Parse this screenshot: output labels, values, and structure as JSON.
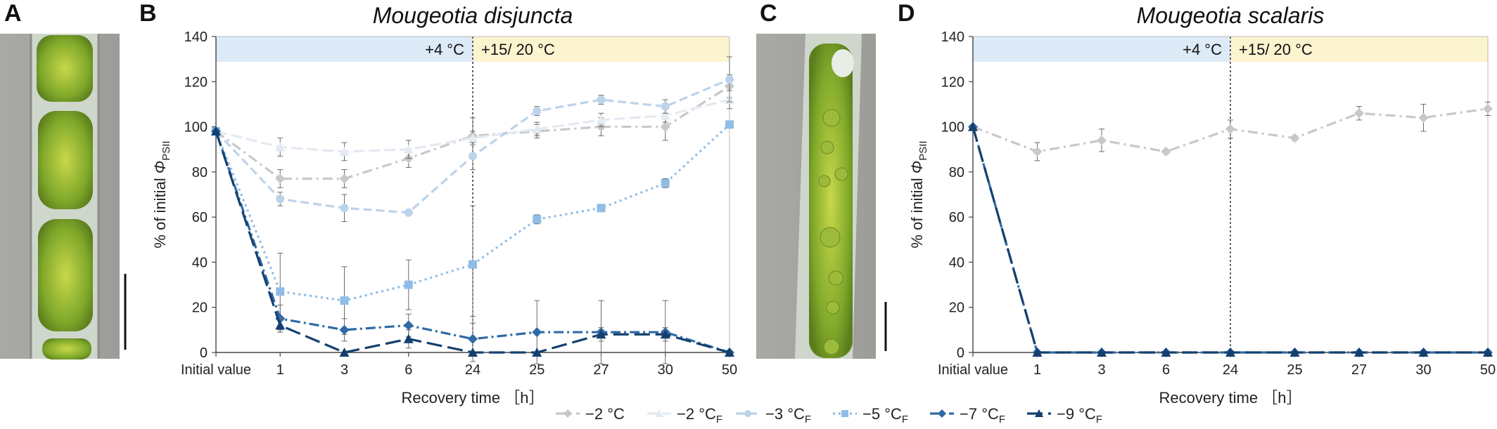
{
  "panels": {
    "A": "A",
    "B": "B",
    "C": "C",
    "D": "D"
  },
  "ylabel_main": "% of initial Φ",
  "ylabel_sub": "PSII",
  "legend": [
    {
      "label": "−2 °C",
      "sub": "",
      "color": "#c8c8c8",
      "dash": "14,6,3,6",
      "marker": "diamond"
    },
    {
      "label": "−2 °C",
      "sub": "F",
      "color": "#e3eaf1",
      "dash": "16,6",
      "marker": "triangle"
    },
    {
      "label": "−3 °C",
      "sub": "F",
      "color": "#bcd3ea",
      "dash": "12,6",
      "marker": "circle"
    },
    {
      "label": "−5 °C",
      "sub": "F",
      "color": "#90bde5",
      "dash": "3,5",
      "marker": "square"
    },
    {
      "label": "−7 °C",
      "sub": "F",
      "color": "#2f6aa6",
      "dash": "14,5,3,5",
      "marker": "diamond"
    },
    {
      "label": "−9 °C",
      "sub": "F",
      "color": "#14406e",
      "dash": "22,8",
      "marker": "triangle"
    }
  ],
  "chart_data": [
    {
      "type": "line",
      "title": "Mougeotia disjuncta",
      "xlabel": "Recovery time ［h］",
      "ylabel": "% of initial ΦPSII",
      "categories": [
        "Initial value",
        "1",
        "3",
        "6",
        "24",
        "25",
        "27",
        "30",
        "50"
      ],
      "ylim": [
        0,
        140
      ],
      "yticks": [
        0,
        20,
        40,
        60,
        80,
        100,
        120,
        140
      ],
      "phases": [
        {
          "label": "+4 °C",
          "from": 0,
          "to": 4,
          "color": "#ddeaf7"
        },
        {
          "label": "+15/ 20 °C",
          "from": 4,
          "to": 8,
          "color": "#fcf3cf"
        }
      ],
      "series": [
        {
          "name": "−2 °C",
          "values": [
            98,
            77,
            77,
            86,
            96,
            98,
            100,
            100,
            118
          ],
          "errors": [
            0,
            4,
            4,
            4,
            8,
            3,
            4,
            6,
            5
          ]
        },
        {
          "name": "−2 °CF",
          "values": [
            98,
            91,
            89,
            90,
            95,
            99,
            103,
            105,
            112
          ],
          "errors": [
            0,
            4,
            4,
            4,
            3,
            3,
            3,
            3,
            4
          ]
        },
        {
          "name": "−3 °CF",
          "values": [
            98,
            68,
            64,
            62,
            87,
            107,
            112,
            109,
            121
          ],
          "errors": [
            0,
            3,
            6,
            1,
            6,
            2,
            2,
            3,
            10
          ]
        },
        {
          "name": "−5 °CF",
          "values": [
            98,
            27,
            23,
            30,
            39,
            59,
            64,
            75,
            101
          ],
          "errors": [
            0,
            17,
            15,
            11,
            26,
            2,
            1,
            2,
            1
          ]
        },
        {
          "name": "−7 °CF",
          "values": [
            98,
            15,
            10,
            12,
            6,
            9,
            9,
            9,
            0
          ],
          "errors": [
            0,
            6,
            5,
            5,
            10,
            14,
            14,
            14,
            0
          ]
        },
        {
          "name": "−9 °CF",
          "values": [
            98,
            12,
            0,
            6,
            0,
            0,
            8,
            8,
            0
          ],
          "errors": [
            0,
            3,
            0,
            4,
            0,
            0,
            3,
            3,
            0
          ]
        }
      ]
    },
    {
      "type": "line",
      "title": "Mougeotia scalaris",
      "xlabel": "Recovery time ［h］",
      "ylabel": "% of initial ΦPSII",
      "categories": [
        "Initial value",
        "1",
        "3",
        "6",
        "24",
        "25",
        "27",
        "30",
        "50"
      ],
      "ylim": [
        0,
        140
      ],
      "yticks": [
        0,
        20,
        40,
        60,
        80,
        100,
        120,
        140
      ],
      "phases": [
        {
          "label": "+4 °C",
          "from": 0,
          "to": 4,
          "color": "#ddeaf7"
        },
        {
          "label": "+15/ 20 °C",
          "from": 4,
          "to": 8,
          "color": "#fcf3cf"
        }
      ],
      "series": [
        {
          "name": "−2 °C",
          "values": [
            100,
            89,
            94,
            89,
            99,
            95,
            106,
            104,
            108
          ],
          "errors": [
            0,
            4,
            5,
            1,
            4,
            1,
            3,
            6,
            3
          ]
        },
        {
          "name": "−7 °CF",
          "values": [
            100,
            0,
            0,
            0,
            0,
            0,
            0,
            0,
            0
          ],
          "errors": [
            0,
            0,
            0,
            0,
            0,
            0,
            0,
            0,
            0
          ]
        },
        {
          "name": "−9 °CF",
          "values": [
            100,
            0,
            0,
            0,
            0,
            0,
            0,
            0,
            0
          ],
          "errors": [
            0,
            0,
            0,
            0,
            0,
            0,
            0,
            0,
            0
          ]
        }
      ]
    }
  ]
}
